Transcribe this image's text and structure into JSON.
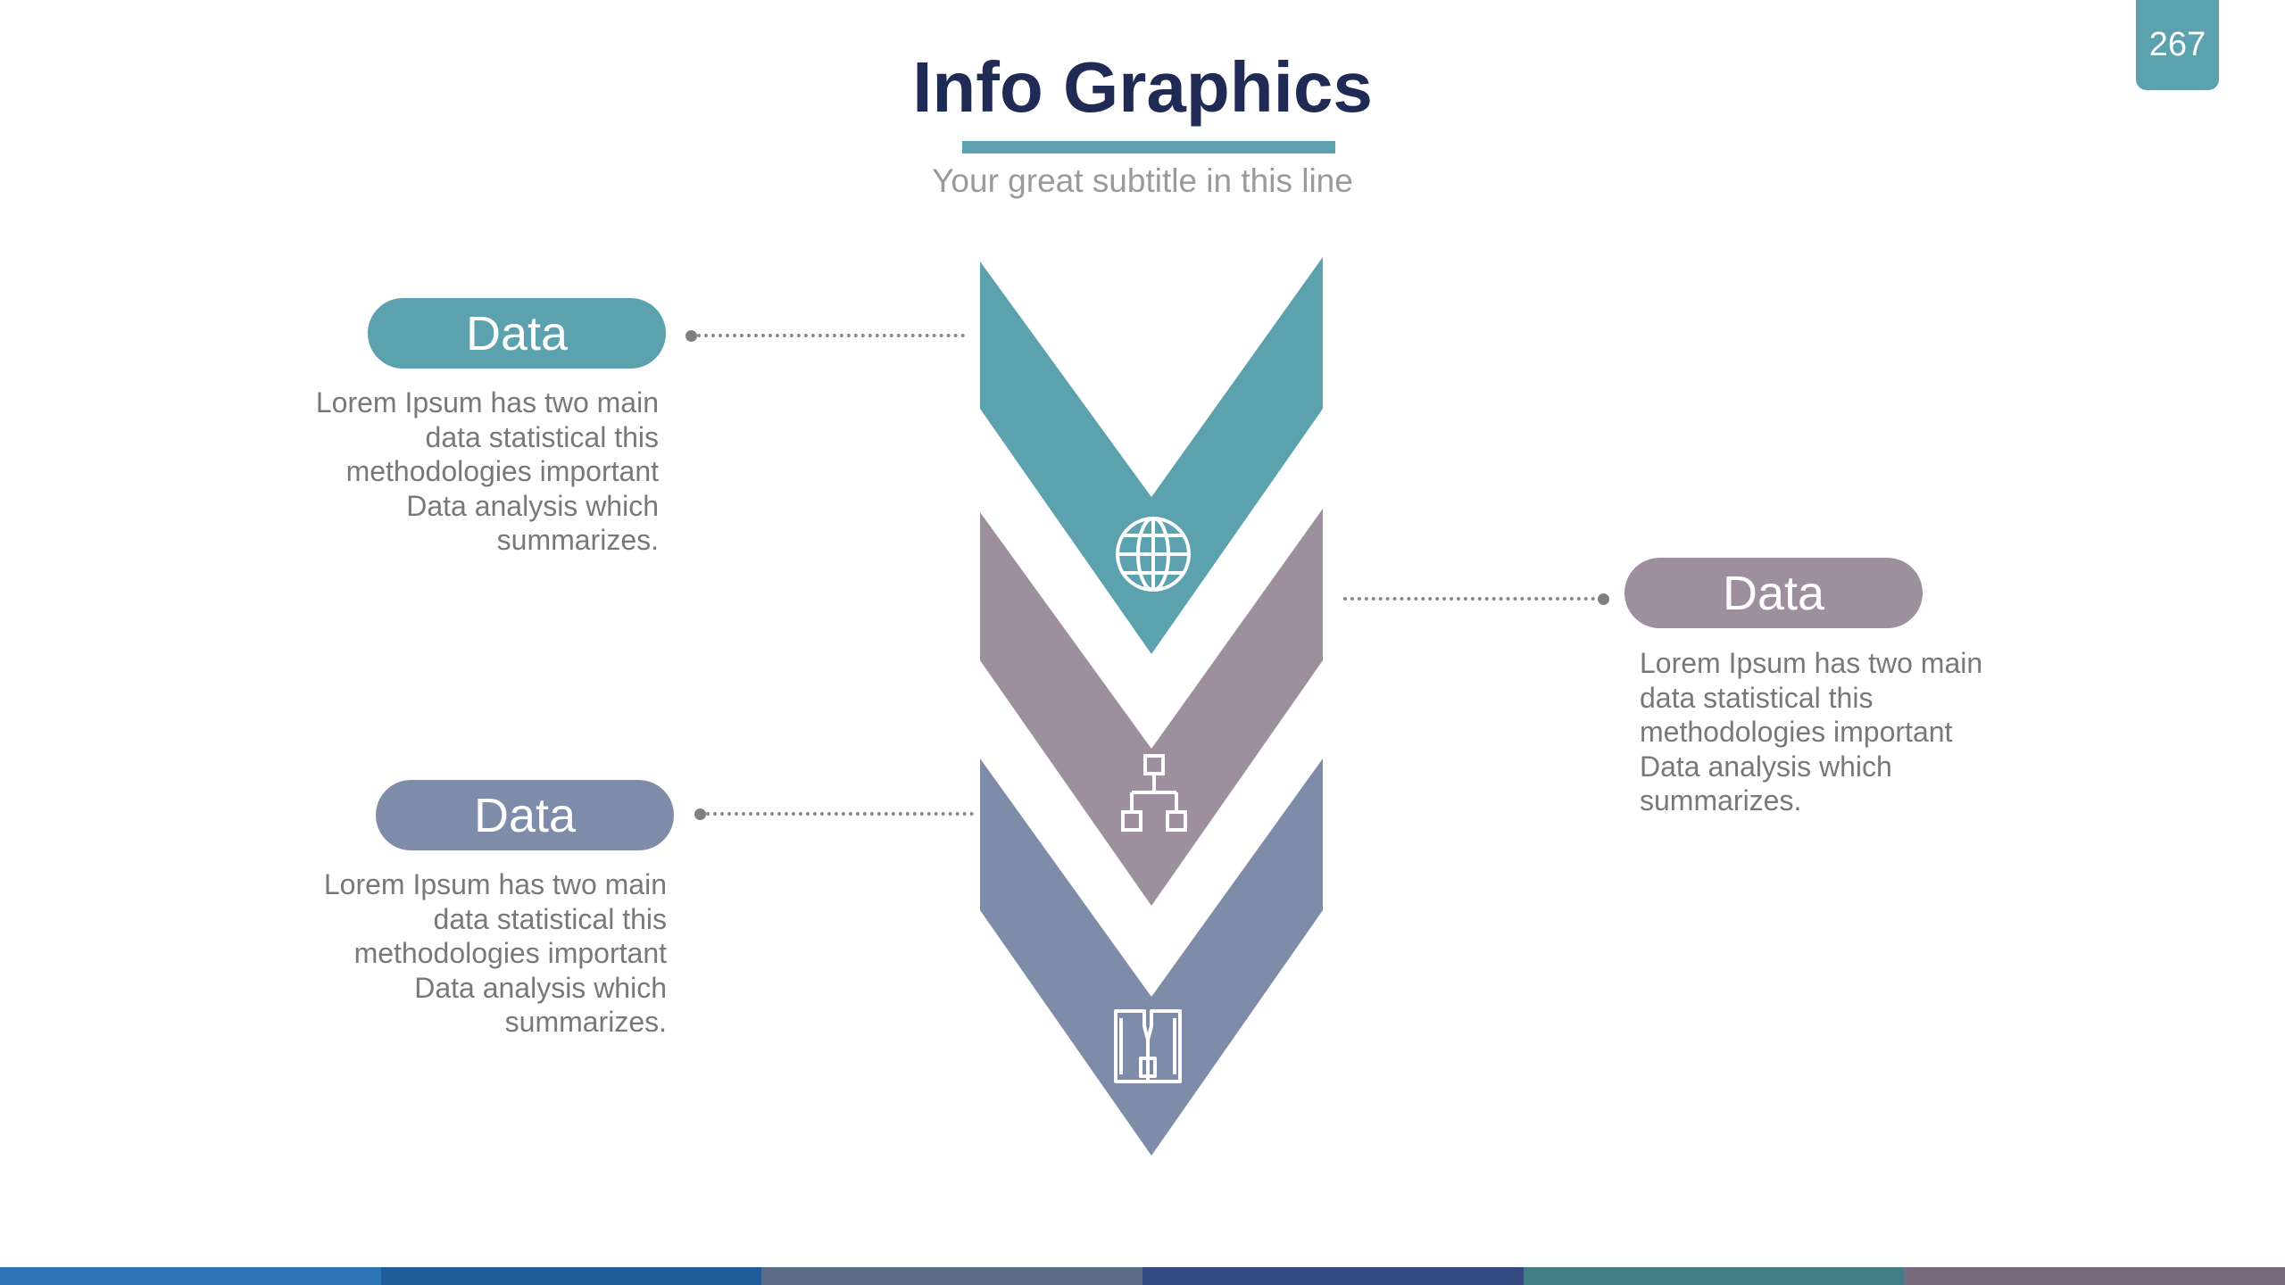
{
  "slide": {
    "page_number": "267",
    "title": "Info Graphics",
    "subtitle": "Your great subtitle in this line"
  },
  "colors": {
    "title": "#1f2a55",
    "accent_teal": "#5ba2ae",
    "accent_mauve": "#9e8f9f",
    "accent_slate": "#7e8ca9",
    "text_gray": "#787878"
  },
  "steps": [
    {
      "label": "Data",
      "text": "Lorem Ipsum has two main data statistical this methodologies important Data analysis which summarizes.",
      "icon": "globe-icon",
      "color": "#5ba2ae",
      "side": "left"
    },
    {
      "label": "Data",
      "text": "Lorem Ipsum has two main data statistical this methodologies important Data analysis which summarizes.",
      "icon": "hierarchy-icon",
      "color": "#9e8f9f",
      "side": "right"
    },
    {
      "label": "Data",
      "text": "Lorem Ipsum has two main data statistical this methodologies important Data analysis which summarizes.",
      "icon": "binoculars-icon",
      "color": "#7e8ca9",
      "side": "left"
    }
  ],
  "footer_colors": [
    "#2e75b6",
    "#1f5c99",
    "#5a6b86",
    "#34497f",
    "#3f7f85",
    "#7a6a7e"
  ]
}
